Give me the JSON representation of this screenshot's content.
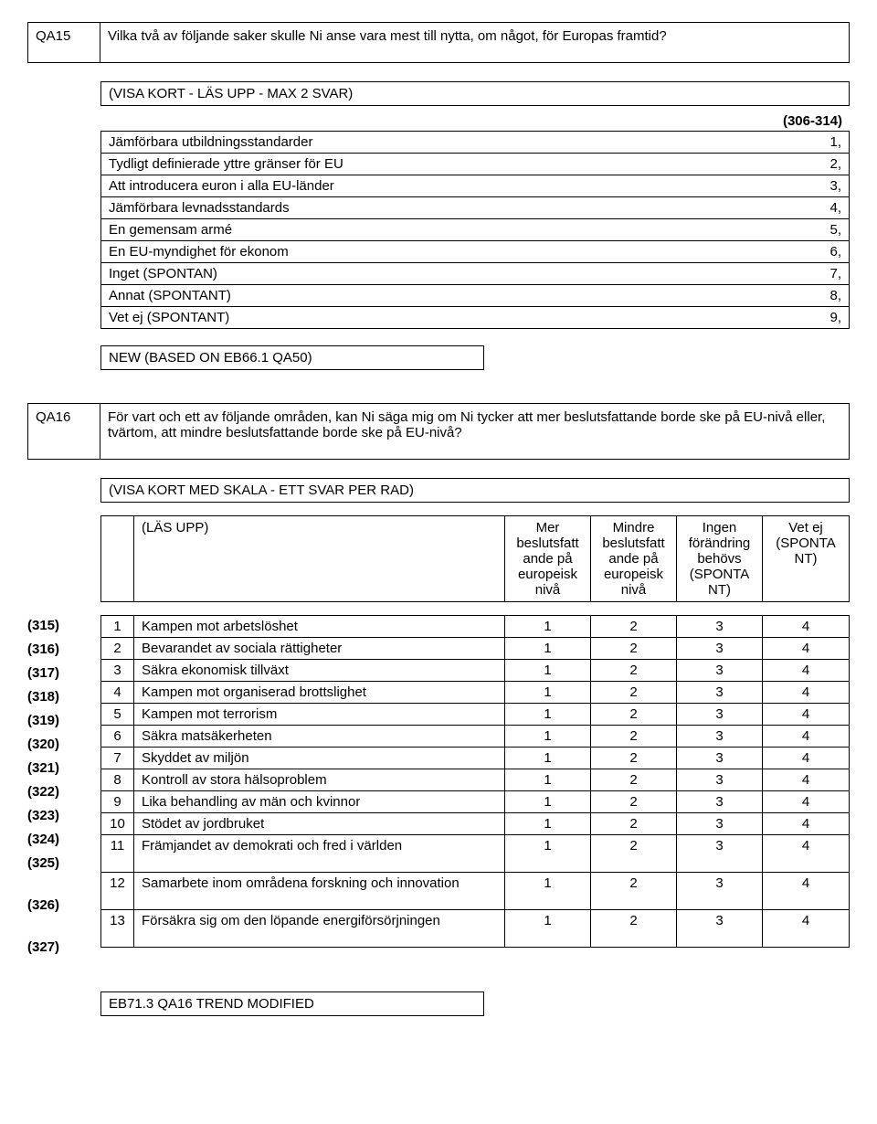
{
  "q15": {
    "code": "QA15",
    "text": "Vilka två av följande saker skulle Ni anse vara mest till nytta, om något, för Europas framtid?",
    "instruction": "(VISA KORT - LÄS UPP - MAX 2 SVAR)",
    "range": "(306-314)",
    "options": [
      {
        "label": "Jämförbara utbildningsstandarder",
        "val": "1,"
      },
      {
        "label": "Tydligt definierade yttre gränser för EU",
        "val": "2,"
      },
      {
        "label": "Att introducera euron i alla EU-länder",
        "val": "3,"
      },
      {
        "label": "Jämförbara levnadsstandards",
        "val": "4,"
      },
      {
        "label": "En gemensam armé",
        "val": "5,"
      },
      {
        "label": "En EU-myndighet för ekonom",
        "val": "6,"
      },
      {
        "label": "Inget (SPONTAN)",
        "val": "7,"
      },
      {
        "label": "Annat (SPONTANT)",
        "val": "8,"
      },
      {
        "label": "Vet ej (SPONTANT)",
        "val": "9,"
      }
    ],
    "note": "NEW (BASED ON EB66.1 QA50)"
  },
  "q16": {
    "code": "QA16",
    "text": "För vart och ett av följande områden, kan Ni säga mig om Ni tycker att mer beslutsfattande borde ske på EU-nivå eller, tvärtom, att mindre beslutsfattande borde ske på EU-nivå?",
    "instruction": "(VISA KORT MED SKALA - ETT SVAR PER RAD)",
    "read": "(LÄS UPP)",
    "cols": [
      "Mer beslutsfatt ande på europeisk nivå",
      "Mindre beslutsfatt ande på europeisk nivå",
      "Ingen förändring behövs (SPONTA NT)",
      "Vet ej (SPONTA NT)"
    ],
    "rows": [
      {
        "id": "(315)",
        "n": "1",
        "label": "Kampen mot arbetslöshet",
        "v": [
          "1",
          "2",
          "3",
          "4"
        ]
      },
      {
        "id": "(316)",
        "n": "2",
        "label": "Bevarandet av sociala rättigheter",
        "v": [
          "1",
          "2",
          "3",
          "4"
        ]
      },
      {
        "id": "(317)",
        "n": "3",
        "label": "Säkra ekonomisk tillväxt",
        "v": [
          "1",
          "2",
          "3",
          "4"
        ]
      },
      {
        "id": "(318)",
        "n": "4",
        "label": "Kampen mot organiserad brottslighet",
        "v": [
          "1",
          "2",
          "3",
          "4"
        ]
      },
      {
        "id": "(319)",
        "n": "5",
        "label": "Kampen mot terrorism",
        "v": [
          "1",
          "2",
          "3",
          "4"
        ]
      },
      {
        "id": "(320)",
        "n": "6",
        "label": "Säkra matsäkerheten",
        "v": [
          "1",
          "2",
          "3",
          "4"
        ]
      },
      {
        "id": "(321)",
        "n": "7",
        "label": "Skyddet av miljön",
        "v": [
          "1",
          "2",
          "3",
          "4"
        ]
      },
      {
        "id": "(322)",
        "n": "8",
        "label": "Kontroll av stora hälsoproblem",
        "v": [
          "1",
          "2",
          "3",
          "4"
        ]
      },
      {
        "id": "(323)",
        "n": "9",
        "label": "Lika behandling av män och kvinnor",
        "v": [
          "1",
          "2",
          "3",
          "4"
        ]
      },
      {
        "id": "(324)",
        "n": "10",
        "label": "Stödet av jordbruket",
        "v": [
          "1",
          "2",
          "3",
          "4"
        ]
      },
      {
        "id": "(325)",
        "n": "11",
        "label": "Främjandet av demokrati och fred i världen",
        "v": [
          "1",
          "2",
          "3",
          "4"
        ],
        "tall": true
      },
      {
        "id": "(326)",
        "n": "12",
        "label": "Samarbete inom områdena forskning och innovation",
        "v": [
          "1",
          "2",
          "3",
          "4"
        ],
        "tall": true
      },
      {
        "id": "(327)",
        "n": "13",
        "label": "Försäkra sig om den löpande energiförsörjningen",
        "v": [
          "1",
          "2",
          "3",
          "4"
        ],
        "tall": true
      }
    ],
    "note": "EB71.3 QA16 TREND MODIFIED"
  }
}
